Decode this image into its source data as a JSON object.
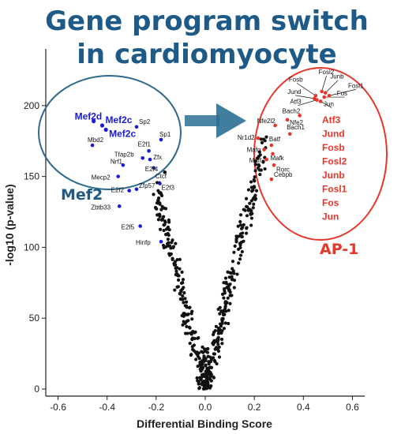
{
  "chart_data": {
    "type": "scatter",
    "title_lines": [
      "Gene program switch",
      "in cardiomyocyte"
    ],
    "xlabel": "Differential Binding Score",
    "ylabel": "-log10 (p-value)",
    "xlim": [
      -0.65,
      0.65
    ],
    "ylim": [
      -5,
      240
    ],
    "xticks": [
      -0.6,
      -0.4,
      -0.2,
      0.0,
      0.2,
      0.4,
      0.6
    ],
    "xtick_labels": [
      "-0.6",
      "-0.4",
      "-0.2",
      "0.0",
      "0.2",
      "0.4",
      "0.6"
    ],
    "yticks": [
      0,
      50,
      100,
      150,
      200
    ],
    "ytick_labels": [
      "0",
      "50",
      "100",
      "150",
      "200"
    ],
    "group_labels": {
      "left": "Mef2",
      "right": "AP-1"
    },
    "ap1_list": [
      "Atf3",
      "Jund",
      "Fosb",
      "Fosl2",
      "Junb",
      "Fosl1",
      "Fos",
      "Jun"
    ],
    "colors": {
      "mef2": "#1a1ad6",
      "ap1": "#e8362a",
      "other": "#111111",
      "title": "#1d5a87",
      "ellipse_blue": "#2e6a8f",
      "ellipse_red": "#e8362a",
      "arrow": "#2b6f94"
    },
    "labeled_points": [
      {
        "name": "Mef2d",
        "x": -0.455,
        "y": 189,
        "group": "mef2",
        "big": true
      },
      {
        "name": "Mef2c",
        "x": -0.42,
        "y": 186,
        "group": "mef2",
        "big": true
      },
      {
        "name": "Mef2c",
        "x": -0.405,
        "y": 183,
        "group": "mef2",
        "big": true
      },
      {
        "name": "Sp2",
        "x": -0.28,
        "y": 185,
        "group": "mef2",
        "big": false
      },
      {
        "name": "Sp1",
        "x": -0.18,
        "y": 176,
        "group": "mef2",
        "big": false
      },
      {
        "name": "Mbd2",
        "x": -0.46,
        "y": 172,
        "group": "mef2",
        "big": false
      },
      {
        "name": "E2f1",
        "x": -0.23,
        "y": 168,
        "group": "mef2",
        "big": false
      },
      {
        "name": "Tfap2b",
        "x": -0.255,
        "y": 163,
        "group": "mef2",
        "big": false
      },
      {
        "name": "Zfx",
        "x": -0.225,
        "y": 162,
        "group": "mef2",
        "big": false
      },
      {
        "name": "Nrf1",
        "x": -0.335,
        "y": 158,
        "group": "mef2",
        "big": false
      },
      {
        "name": "E2f4",
        "x": -0.21,
        "y": 156,
        "group": "mef2",
        "big": false
      },
      {
        "name": "Ctcf",
        "x": -0.165,
        "y": 153,
        "group": "other",
        "big": false
      },
      {
        "name": "Mecp2",
        "x": -0.355,
        "y": 150,
        "group": "mef2",
        "big": false
      },
      {
        "name": "E2f3",
        "x": -0.185,
        "y": 145,
        "group": "mef2",
        "big": false
      },
      {
        "name": "E2f2",
        "x": -0.31,
        "y": 140,
        "group": "mef2",
        "big": false
      },
      {
        "name": "Zfp57",
        "x": -0.28,
        "y": 141,
        "group": "mef2",
        "big": false
      },
      {
        "name": "Zbtb33",
        "x": -0.35,
        "y": 129,
        "group": "mef2",
        "big": false
      },
      {
        "name": "E2f5",
        "x": -0.265,
        "y": 115,
        "group": "mef2",
        "big": false
      },
      {
        "name": "Hinfp",
        "x": -0.18,
        "y": 104,
        "group": "mef2",
        "big": false
      },
      {
        "name": "Fosl2",
        "x": 0.475,
        "y": 210,
        "group": "ap1",
        "big": false
      },
      {
        "name": "Fosb",
        "x": 0.45,
        "y": 207,
        "group": "ap1",
        "big": false
      },
      {
        "name": "Junb",
        "x": 0.49,
        "y": 209,
        "group": "ap1",
        "big": false
      },
      {
        "name": "Fosl1",
        "x": 0.505,
        "y": 207,
        "group": "ap1",
        "big": false
      },
      {
        "name": "Jund",
        "x": 0.445,
        "y": 205,
        "group": "ap1",
        "big": false
      },
      {
        "name": "Fos",
        "x": 0.485,
        "y": 206,
        "group": "ap1",
        "big": false
      },
      {
        "name": "Atf3",
        "x": 0.455,
        "y": 204,
        "group": "ap1",
        "big": false
      },
      {
        "name": "Jun",
        "x": 0.47,
        "y": 203,
        "group": "ap1",
        "big": false
      },
      {
        "name": "Bach2",
        "x": 0.385,
        "y": 193,
        "group": "ap1",
        "big": false
      },
      {
        "name": "Nfe2l2",
        "x": 0.285,
        "y": 186,
        "group": "ap1",
        "big": false
      },
      {
        "name": "Nfe2",
        "x": 0.335,
        "y": 190,
        "group": "ap1",
        "big": false
      },
      {
        "name": "Bach1",
        "x": 0.345,
        "y": 180,
        "group": "ap1",
        "big": false
      },
      {
        "name": "Nr1d2",
        "x": 0.215,
        "y": 177,
        "group": "ap1",
        "big": false
      },
      {
        "name": "Batf",
        "x": 0.27,
        "y": 172,
        "group": "ap1",
        "big": false
      },
      {
        "name": "Mafk",
        "x": 0.275,
        "y": 166,
        "group": "ap1",
        "big": false
      },
      {
        "name": "Mafg",
        "x": 0.24,
        "y": 169,
        "group": "ap1",
        "big": false
      },
      {
        "name": "Maff",
        "x": 0.25,
        "y": 162,
        "group": "ap1",
        "big": false
      },
      {
        "name": "Rorc",
        "x": 0.28,
        "y": 158,
        "group": "ap1",
        "big": false
      },
      {
        "name": "Cebpb",
        "x": 0.27,
        "y": 148,
        "group": "ap1",
        "big": false
      }
    ]
  }
}
